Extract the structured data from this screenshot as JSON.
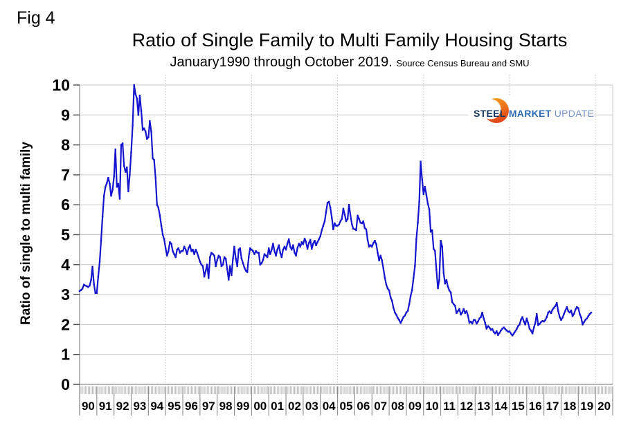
{
  "fig_label": "Fig 4",
  "title": "Ratio of Single Family to Multi Family Housing Starts",
  "subtitle": "January1990 through October 2019.",
  "subtitle_source": "Source Census Bureau and SMU",
  "logo": {
    "steel": "STEEL",
    "market": "MARKET",
    "update": "UPDATE",
    "steel_color": "#17365d",
    "market_color": "#2e6db4",
    "update_color": "#7b97c2",
    "crescent_top_color": "#f6a21d",
    "crescent_bottom_color": "#e2491a"
  },
  "chart_data": {
    "type": "line",
    "series_name": "Ratio of single family to multi family housing starts",
    "frequency": "monthly",
    "x_start": "1990-01",
    "x_end": "2019-10",
    "ylabel": "Ratio of single to multi family",
    "ylim": [
      0,
      10
    ],
    "y_ticks": [
      0,
      1,
      2,
      3,
      4,
      5,
      6,
      7,
      8,
      9,
      10
    ],
    "x_tick_labels": [
      "90",
      "91",
      "92",
      "93",
      "94",
      "95",
      "96",
      "97",
      "98",
      "99",
      "00",
      "01",
      "02",
      "03",
      "04",
      "05",
      "06",
      "07",
      "08",
      "09",
      "10",
      "11",
      "12",
      "13",
      "14",
      "15",
      "16",
      "17",
      "18",
      "19",
      "20"
    ],
    "grid_vertical_dotted_years": [
      1995,
      2000,
      2005,
      2010,
      2015,
      2020
    ],
    "grid_horizontal": true,
    "line_color": "#1414cf",
    "values": [
      3.12,
      3.15,
      3.2,
      3.33,
      3.3,
      3.28,
      3.25,
      3.3,
      3.49,
      3.93,
      3.35,
      3.05,
      3.05,
      3.6,
      4.1,
      4.8,
      5.6,
      6.3,
      6.6,
      6.72,
      6.9,
      6.7,
      6.3,
      6.5,
      6.95,
      7.85,
      6.6,
      6.7,
      6.2,
      8.0,
      8.05,
      7.3,
      7.1,
      7.25,
      6.45,
      7.0,
      7.75,
      8.65,
      10.0,
      9.7,
      9.55,
      9.0,
      9.65,
      9.15,
      8.5,
      8.55,
      8.45,
      8.2,
      8.25,
      8.8,
      8.45,
      7.55,
      7.5,
      6.9,
      6.0,
      5.9,
      5.65,
      5.3,
      5.0,
      4.85,
      4.55,
      4.3,
      4.45,
      4.75,
      4.7,
      4.45,
      4.35,
      4.25,
      4.5,
      4.55,
      4.4,
      4.45,
      4.45,
      4.6,
      4.5,
      4.35,
      4.55,
      4.65,
      4.45,
      4.5,
      4.35,
      4.5,
      4.4,
      4.25,
      4.1,
      4.0,
      3.95,
      3.6,
      3.8,
      4.0,
      3.55,
      4.25,
      4.4,
      4.35,
      4.3,
      3.95,
      4.15,
      4.3,
      4.25,
      3.95,
      4.0,
      4.25,
      4.2,
      3.85,
      3.5,
      3.95,
      3.65,
      4.2,
      4.6,
      4.2,
      3.95,
      4.5,
      4.55,
      4.2,
      4.05,
      3.9,
      3.8,
      3.75,
      4.25,
      4.55,
      4.5,
      4.45,
      4.35,
      4.45,
      4.4,
      4.4,
      4.0,
      4.05,
      4.15,
      4.35,
      4.3,
      4.25,
      4.55,
      4.35,
      4.5,
      4.7,
      4.45,
      4.3,
      4.5,
      4.65,
      4.4,
      4.25,
      4.5,
      4.6,
      4.5,
      4.7,
      4.85,
      4.6,
      4.5,
      4.65,
      4.4,
      4.3,
      4.55,
      4.7,
      4.6,
      4.75,
      4.68,
      4.87,
      4.76,
      4.53,
      4.72,
      4.83,
      4.53,
      4.7,
      4.8,
      4.65,
      4.75,
      4.85,
      4.95,
      5.15,
      5.3,
      5.45,
      5.76,
      6.07,
      6.1,
      5.9,
      5.57,
      5.18,
      5.38,
      5.3,
      5.3,
      5.34,
      5.45,
      5.53,
      5.87,
      5.68,
      5.45,
      5.53,
      6.0,
      5.64,
      5.35,
      5.2,
      5.18,
      5.15,
      5.64,
      5.53,
      5.4,
      5.38,
      5.45,
      5.22,
      5.18,
      4.83,
      4.6,
      4.65,
      4.6,
      4.72,
      4.8,
      4.68,
      4.4,
      4.14,
      4.3,
      4.14,
      3.87,
      3.56,
      3.33,
      3.2,
      3.14,
      2.9,
      2.8,
      2.56,
      2.4,
      2.33,
      2.22,
      2.15,
      2.05,
      2.15,
      2.25,
      2.3,
      2.4,
      2.45,
      2.68,
      2.95,
      3.15,
      3.55,
      3.95,
      4.85,
      5.4,
      6.1,
      7.44,
      6.85,
      6.35,
      6.6,
      6.33,
      6.03,
      5.84,
      5.1,
      5.15,
      4.53,
      4.46,
      3.83,
      3.21,
      3.49,
      4.8,
      4.6,
      3.72,
      3.37,
      3.49,
      3.26,
      3.14,
      3.07,
      2.75,
      2.68,
      2.63,
      2.38,
      2.45,
      2.52,
      2.33,
      2.4,
      2.52,
      2.38,
      2.45,
      2.3,
      2.06,
      2.1,
      2.03,
      2.15,
      2.15,
      2.03,
      2.1,
      2.2,
      2.25,
      2.4,
      2.2,
      2.05,
      1.86,
      1.95,
      1.9,
      1.82,
      1.85,
      1.75,
      1.7,
      1.78,
      1.65,
      1.72,
      1.8,
      1.86,
      1.9,
      1.85,
      1.8,
      1.76,
      1.77,
      1.7,
      1.63,
      1.7,
      1.77,
      1.85,
      1.95,
      2.0,
      2.16,
      2.25,
      2.1,
      2.0,
      2.2,
      2.05,
      1.86,
      1.8,
      1.7,
      1.9,
      2.05,
      2.35,
      1.98,
      2.02,
      2.08,
      2.12,
      2.1,
      2.15,
      2.25,
      2.4,
      2.44,
      2.38,
      2.5,
      2.56,
      2.62,
      2.72,
      2.45,
      2.25,
      2.15,
      2.23,
      2.35,
      2.47,
      2.58,
      2.45,
      2.4,
      2.47,
      2.28,
      2.35,
      2.5,
      2.58,
      2.55,
      2.35,
      2.23,
      2.0,
      2.08,
      2.16,
      2.2,
      2.28,
      2.35,
      2.4
    ]
  }
}
